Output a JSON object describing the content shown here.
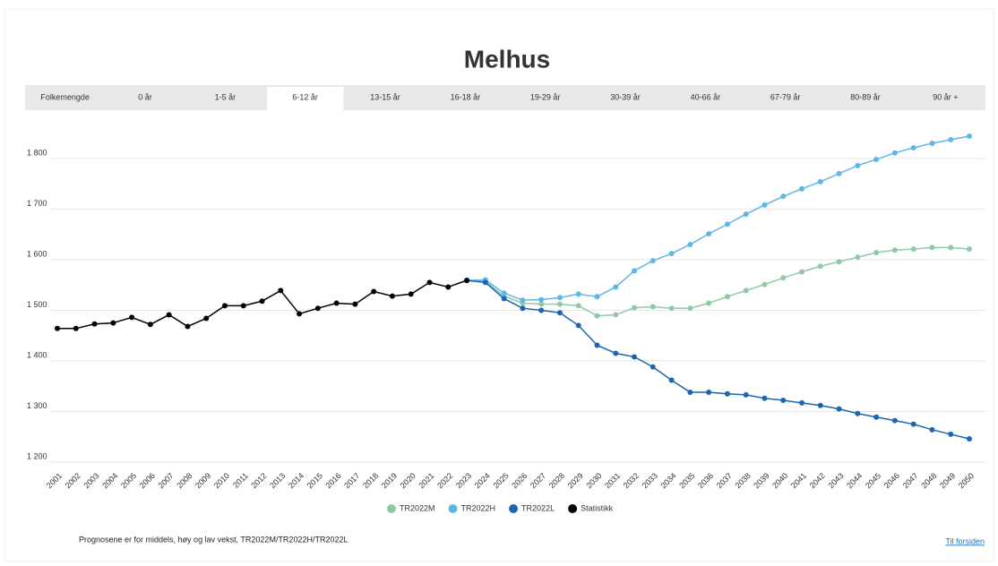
{
  "tabs": [
    "Folkemengde",
    "0 år",
    "1-5 år",
    "6-12 år",
    "13-15 år",
    "16-18 år",
    "19-29 år",
    "30-39 år",
    "40-66 år",
    "67-79 år",
    "80-89 år",
    "90 år +"
  ],
  "active_tab": 3,
  "footnote": "Prognosene er for middels, høy og lav vekst, TR2022M/TR2022H/TR2022L",
  "link": "Til forsiden",
  "chart_data": {
    "type": "line",
    "title": "Melhus",
    "categories": [
      "2001",
      "2002",
      "2003",
      "2004",
      "2005",
      "2006",
      "2007",
      "2008",
      "2009",
      "2010",
      "2011",
      "2012",
      "2013",
      "2014",
      "2015",
      "2016",
      "2017",
      "2018",
      "2019",
      "2020",
      "2021",
      "2022",
      "2023",
      "2024",
      "2025",
      "2026",
      "2027",
      "2028",
      "2029",
      "2030",
      "2031",
      "2032",
      "2033",
      "2034",
      "2035",
      "2036",
      "2037",
      "2038",
      "2039",
      "2040",
      "2041",
      "2042",
      "2043",
      "2044",
      "2045",
      "2046",
      "2047",
      "2048",
      "2049",
      "2050"
    ],
    "series": [
      {
        "name": "TR2022M",
        "color": "#8fc9a5",
        "values": [
          null,
          null,
          null,
          null,
          null,
          null,
          null,
          null,
          null,
          null,
          null,
          null,
          null,
          null,
          null,
          null,
          null,
          null,
          null,
          null,
          null,
          null,
          1559,
          1557,
          1528,
          1514,
          1512,
          1512,
          1509,
          1489,
          1491,
          1505,
          1507,
          1504,
          1504,
          1514,
          1527,
          1539,
          1551,
          1564,
          1576,
          1587,
          1596,
          1605,
          1614,
          1619,
          1621,
          1624,
          1624,
          1621
        ]
      },
      {
        "name": "TR2022H",
        "color": "#5fb7e5",
        "values": [
          null,
          null,
          null,
          null,
          null,
          null,
          null,
          null,
          null,
          null,
          null,
          null,
          null,
          null,
          null,
          null,
          null,
          null,
          null,
          null,
          null,
          null,
          1559,
          1560,
          1534,
          1520,
          1521,
          1525,
          1532,
          1527,
          1546,
          1578,
          1598,
          1612,
          1630,
          1651,
          1670,
          1690,
          1708,
          1725,
          1740,
          1754,
          1770,
          1786,
          1798,
          1811,
          1821,
          1830,
          1837,
          1844
        ]
      },
      {
        "name": "TR2022L",
        "color": "#1c66b0",
        "values": [
          null,
          null,
          null,
          null,
          null,
          null,
          null,
          null,
          null,
          null,
          null,
          null,
          null,
          null,
          null,
          null,
          null,
          null,
          null,
          null,
          null,
          null,
          1559,
          1555,
          1523,
          1504,
          1500,
          1495,
          1470,
          1431,
          1415,
          1408,
          1388,
          1362,
          1338,
          1338,
          1335,
          1333,
          1326,
          1322,
          1317,
          1312,
          1305,
          1296,
          1289,
          1282,
          1275,
          1264,
          1255,
          1246
        ]
      },
      {
        "name": "Statistikk",
        "color": "#000000",
        "values": [
          1464,
          1464,
          1473,
          1475,
          1486,
          1472,
          1491,
          1468,
          1484,
          1509,
          1509,
          1518,
          1539,
          1493,
          1504,
          1514,
          1512,
          1537,
          1528,
          1532,
          1555,
          1546,
          1559,
          null,
          null,
          null,
          null,
          null,
          null,
          null,
          null,
          null,
          null,
          null,
          null,
          null,
          null,
          null,
          null,
          null,
          null,
          null,
          null,
          null,
          null,
          null,
          null,
          null,
          null,
          null
        ]
      }
    ],
    "ylim": [
      1200,
      1860
    ],
    "yticks": [
      {
        "value": 1200,
        "label": "1 200"
      },
      {
        "value": 1300,
        "label": "1 300"
      },
      {
        "value": 1400,
        "label": "1 400"
      },
      {
        "value": 1500,
        "label": "1 500"
      },
      {
        "value": 1600,
        "label": "1 600"
      },
      {
        "value": 1700,
        "label": "1 700"
      },
      {
        "value": 1800,
        "label": "1 800"
      }
    ],
    "grid": true
  }
}
